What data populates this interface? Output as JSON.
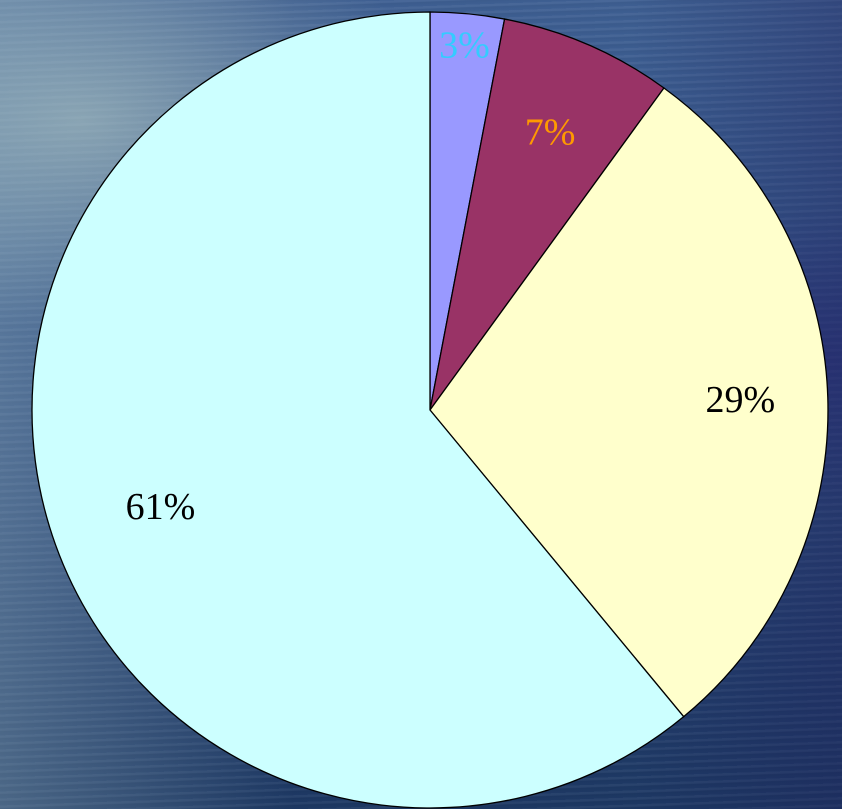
{
  "chart_data": {
    "type": "pie",
    "labels": [
      "3%",
      "7%",
      "29%",
      "61%"
    ],
    "values": [
      3,
      7,
      29,
      61
    ],
    "colors": [
      "#9999ff",
      "#993366",
      "#ffffcc",
      "#ccffff"
    ],
    "label_colors": [
      "#33ccff",
      "#ff9900",
      "#000000",
      "#000000"
    ],
    "start_angle_deg": 0,
    "direction": "clockwise",
    "title": "",
    "legend": "none"
  }
}
